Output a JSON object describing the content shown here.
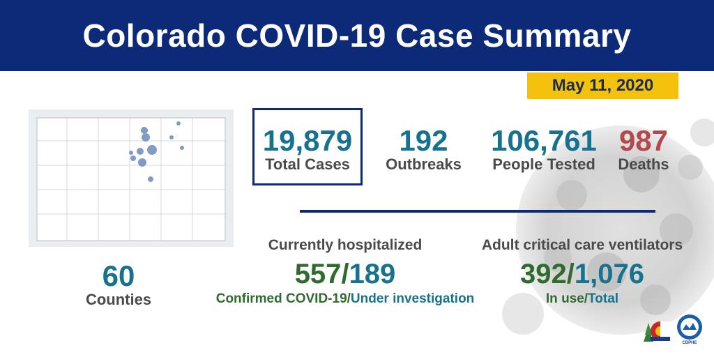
{
  "header": {
    "title": "Colorado COVID-19 Case Summary"
  },
  "date": "May 11, 2020",
  "stats": {
    "total_cases": {
      "value": "19,879",
      "label": "Total Cases"
    },
    "outbreaks": {
      "value": "192",
      "label": "Outbreaks"
    },
    "people_tested": {
      "value": "106,761",
      "label": "People Tested"
    },
    "deaths": {
      "value": "987",
      "label": "Deaths"
    }
  },
  "counties": {
    "value": "60",
    "label": "Counties"
  },
  "hospitalized": {
    "title": "Currently hospitalized",
    "confirmed": "557",
    "separator": "/",
    "under_investigation": "189",
    "confirmed_label": "Confirmed COVID-19/",
    "investigation_label": "Under investigation"
  },
  "ventilators": {
    "title": "Adult critical care ventilators",
    "in_use": "392",
    "separator": "/",
    "total": "1,076",
    "in_use_label": "In use/",
    "total_label": "Total"
  },
  "logos": {
    "cdphe": "CDPHE"
  },
  "colors": {
    "navy": "#0c2a78",
    "gold": "#f4c20d",
    "teal": "#16728f",
    "green": "#2f6b2f",
    "red": "#b5484c"
  }
}
